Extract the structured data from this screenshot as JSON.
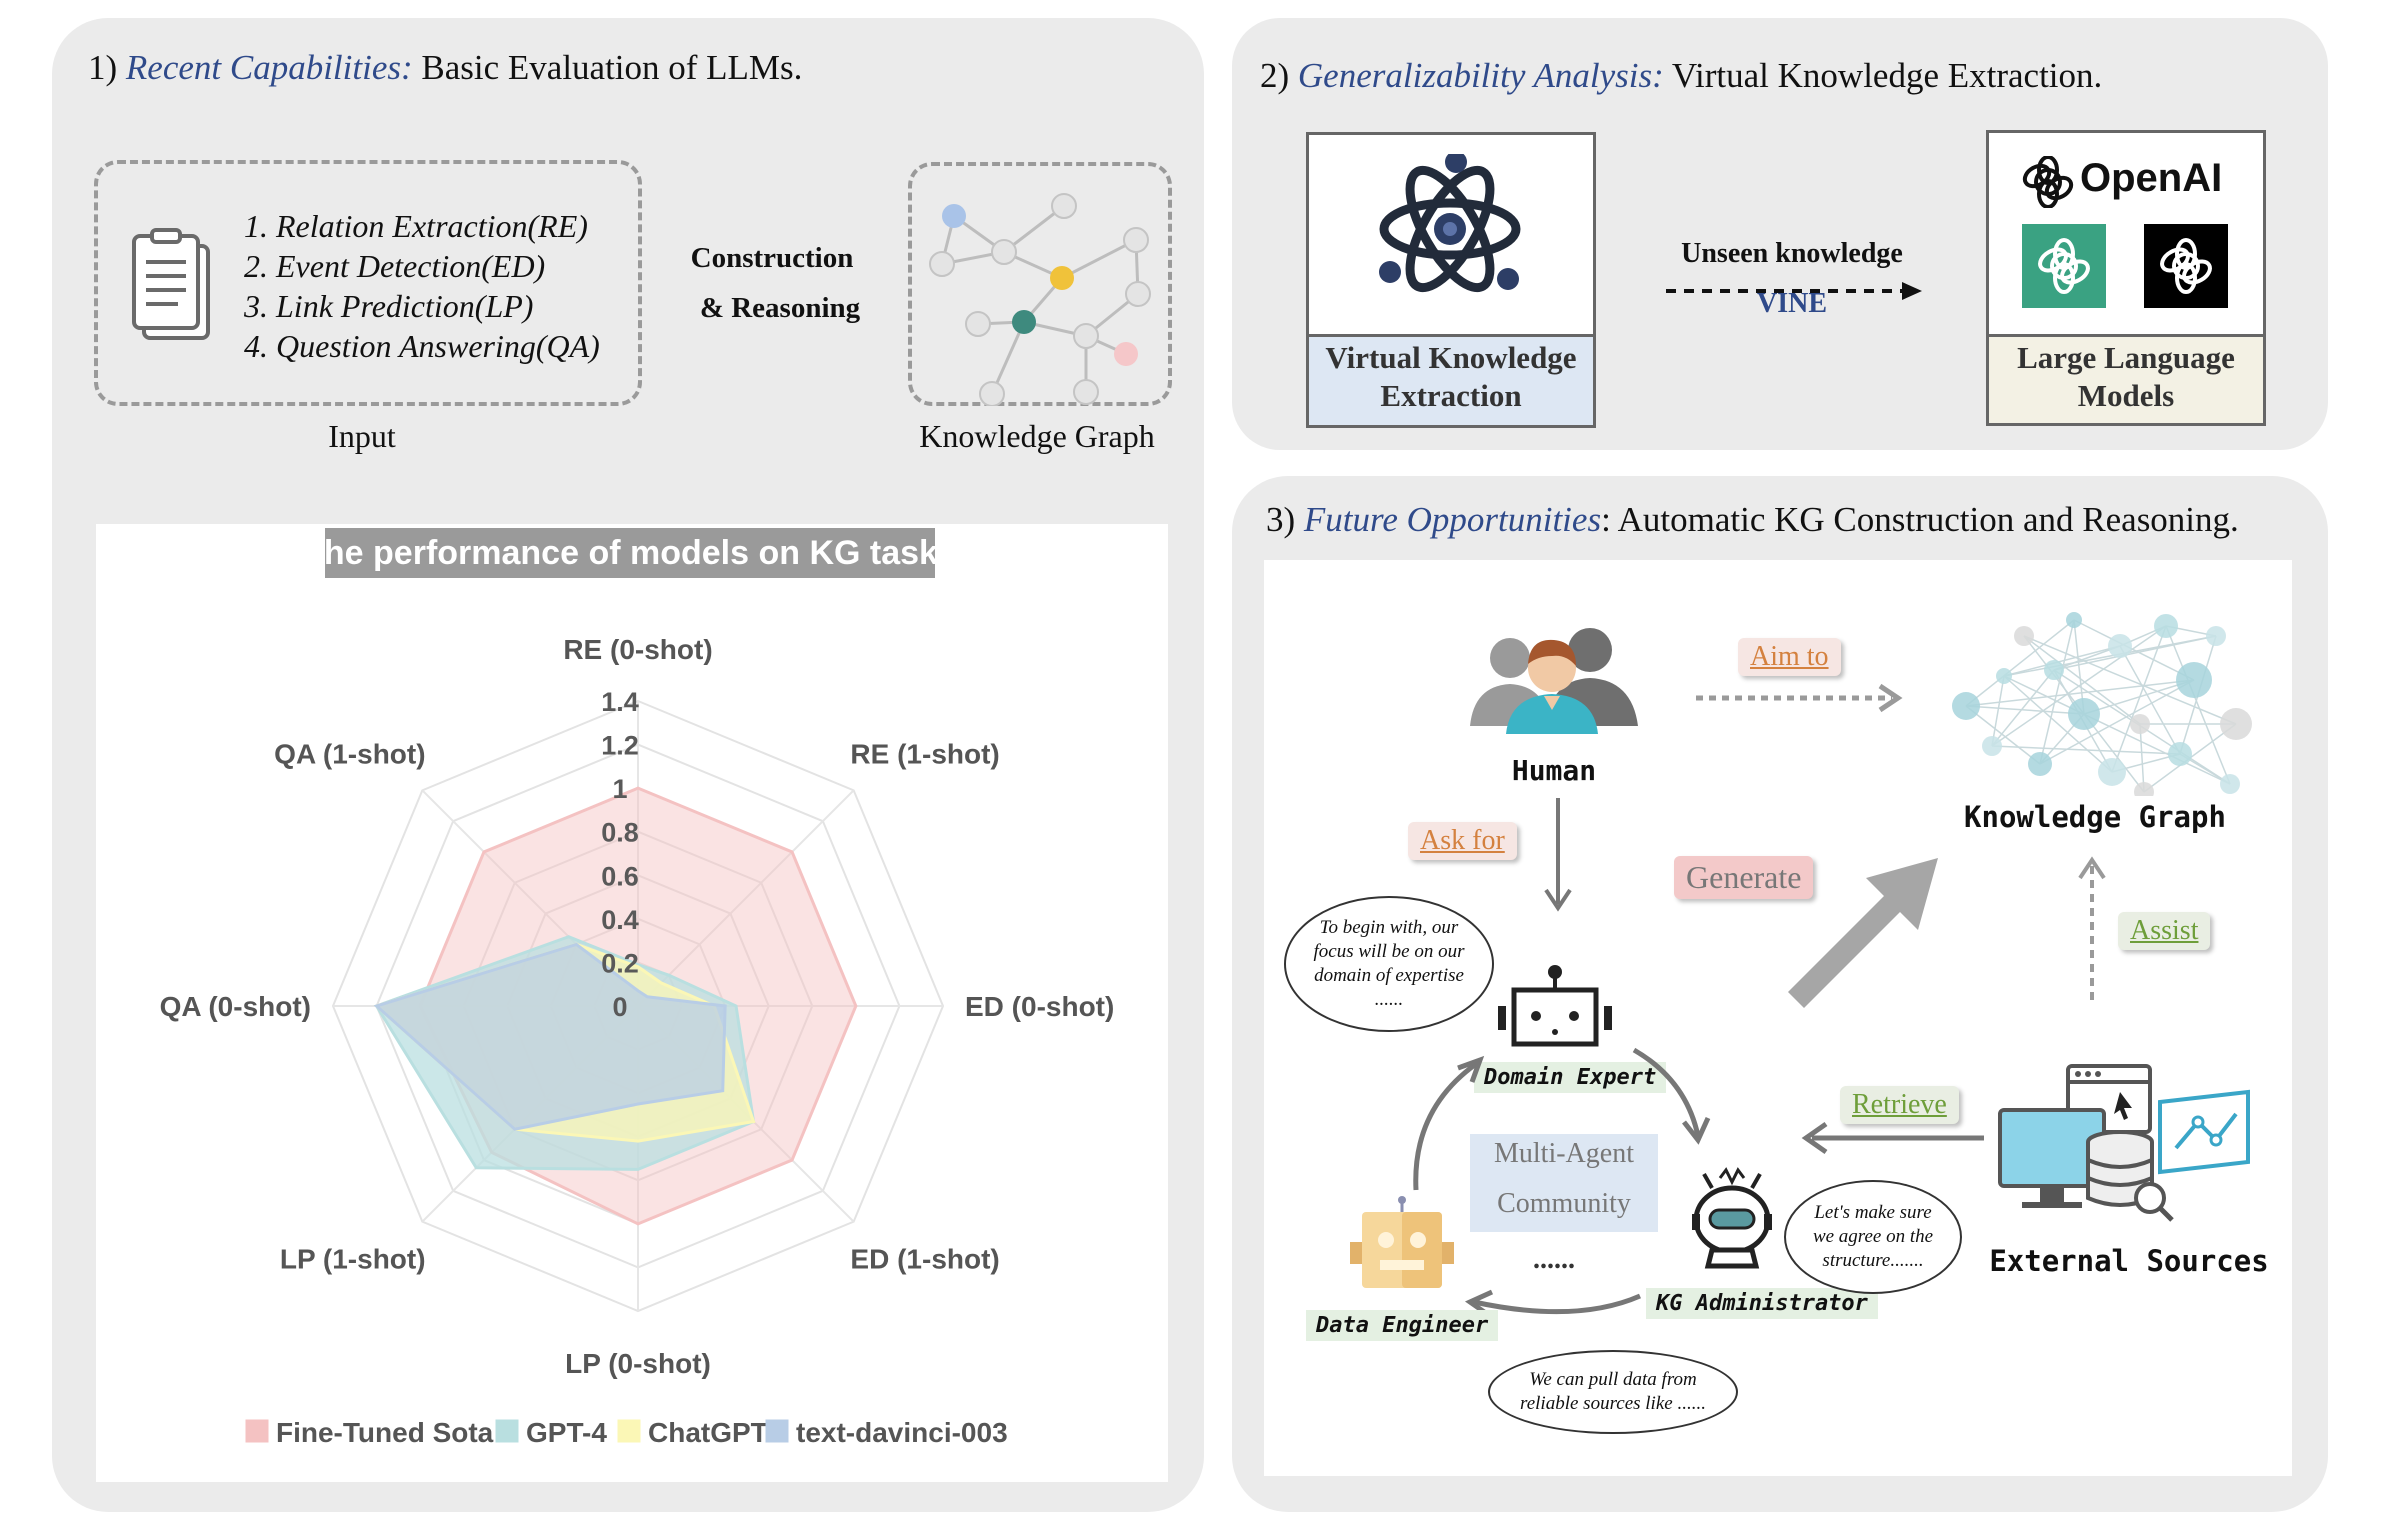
{
  "panel1": {
    "num": "1)",
    "title_em": "Recent Capabilities:",
    "title_rest": "Basic Evaluation of LLMs.",
    "tasks": [
      "1.  Relation Extraction(RE)",
      "2.  Event Detection(ED)",
      "3.  Link Prediction(LP)",
      "4.  Question Answering(QA)"
    ],
    "input_label": "Input",
    "arrow_label_1": "Construction",
    "arrow_label_2": "& Reasoning",
    "kg_label": "Knowledge Graph"
  },
  "chart_data": {
    "type": "radar",
    "title": "The performance of models on KG tasks",
    "axes": [
      "RE (0-shot)",
      "RE (1-shot)",
      "ED (0-shot)",
      "ED (1-shot)",
      "LP (0-shot)",
      "LP (1-shot)",
      "QA (0-shot)",
      "QA (1-shot)"
    ],
    "tick_labels": [
      "0",
      "0.2",
      "0.4",
      "0.6",
      "0.8",
      "1",
      "1.2",
      "1.4"
    ],
    "rmax": 1.4,
    "series": [
      {
        "name": "Fine-Tuned Sota",
        "color": "#f4c2c2",
        "values": [
          1.0,
          1.0,
          1.0,
          1.0,
          1.0,
          0.95,
          1.0,
          1.0
        ]
      },
      {
        "name": "GPT-4",
        "color": "#b9dfe0",
        "values": [
          0.19,
          0.2,
          0.45,
          0.75,
          0.75,
          1.05,
          1.2,
          0.45
        ]
      },
      {
        "name": "ChatGPT",
        "color": "#fbf7b6",
        "values": [
          0.18,
          0.15,
          0.35,
          0.75,
          0.62,
          0.8,
          1.2,
          0.4
        ]
      },
      {
        "name": "text-davinci-003",
        "color": "#b8cde6",
        "values": [
          0.07,
          0.06,
          0.4,
          0.55,
          0.45,
          0.8,
          1.2,
          0.4
        ]
      }
    ]
  },
  "panel2": {
    "num": "2)",
    "title_em": "Generalizability Analysis:",
    "title_rest": "Virtual Knowledge Extraction.",
    "vke_label_1": "Virtual Knowledge",
    "vke_label_2": "Extraction",
    "arrow_top": "Unseen  knowledge",
    "arrow_bottom": "VINE",
    "openai_text": "OpenAI",
    "llm_label_1": "Large Language",
    "llm_label_2": "Models"
  },
  "panel3": {
    "num": "3)",
    "title_em": "Future Opportunities",
    "title_rest": ":  Automatic KG Construction and Reasoning.",
    "human": "Human",
    "aim_to": "Aim to",
    "knowledge_graph": "Knowledge Graph",
    "ask_for": "Ask for",
    "generate": "Generate",
    "assist": "Assist",
    "retrieve": "Retrieve",
    "external_sources": "External Sources",
    "domain_expert": "Domain Expert",
    "kg_admin": "KG Administrator",
    "data_engineer": "Data Engineer",
    "community_1": "Multi-Agent",
    "community_2": "Community",
    "dots": "......",
    "bubble_expert": "To begin with, our focus will be on our domain of expertise ......",
    "bubble_admin": "Let's make sure we agree on the structure.......",
    "bubble_engineer": "We can pull data from reliable sources like ......"
  },
  "colors": {
    "panel_bg": "#ebebeb",
    "title_accent": "#2f4a8a",
    "orange": "#d4813f",
    "green": "#6e9e3a",
    "pink": "#f3c9c9",
    "vke_fill": "#dde7f3",
    "llm_fill": "#f3f1e4",
    "openai_green": "#3aa282"
  }
}
